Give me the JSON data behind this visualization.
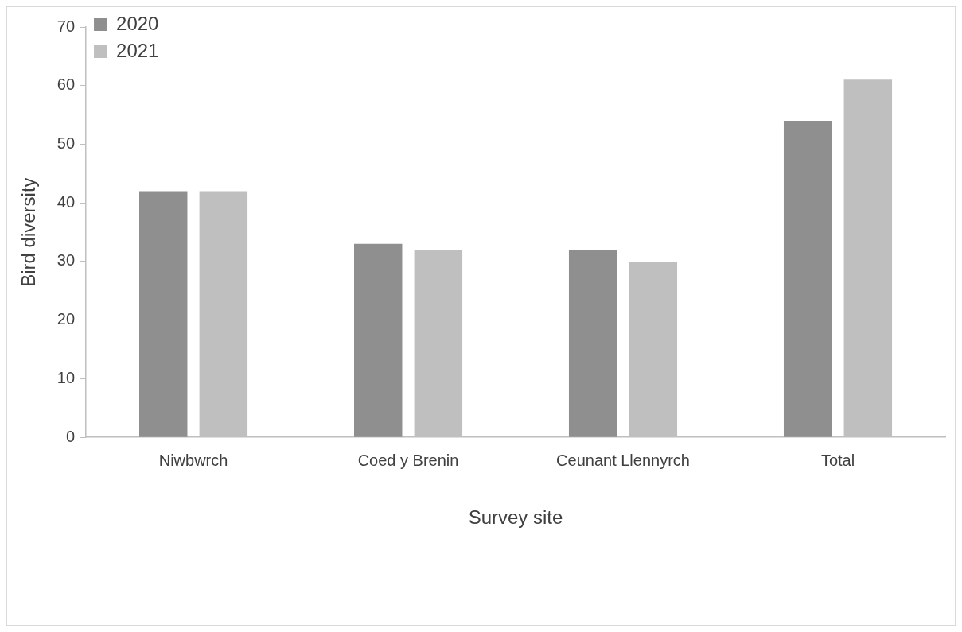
{
  "chart_data": {
    "type": "bar",
    "xlabel": "Survey site",
    "ylabel": "Bird diversity",
    "categories": [
      "Niwbwrch",
      "Coed y Brenin",
      "Ceunant Llennyrch",
      "Total"
    ],
    "series": [
      {
        "name": "2020",
        "color": "#8f8f8f",
        "values": [
          42,
          33,
          32,
          54
        ]
      },
      {
        "name": "2021",
        "color": "#bfbfbf",
        "values": [
          42,
          32,
          30,
          61
        ]
      }
    ],
    "ylim": [
      0,
      70
    ],
    "yticks": [
      0,
      10,
      20,
      30,
      40,
      50,
      60,
      70
    ],
    "legend": "top left"
  }
}
